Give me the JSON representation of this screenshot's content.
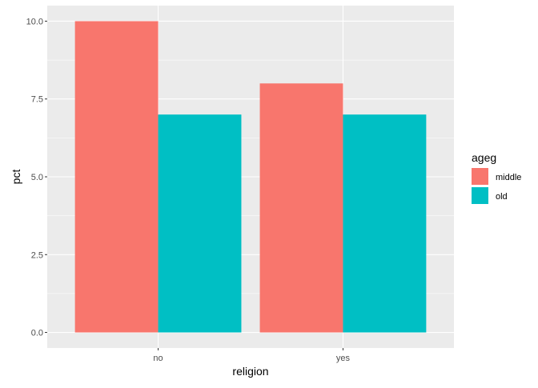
{
  "chart_data": {
    "type": "bar",
    "title": "",
    "xlabel": "religion",
    "ylabel": "pct",
    "categories": [
      "no",
      "yes"
    ],
    "series": [
      {
        "name": "middle",
        "values": [
          10,
          8
        ],
        "color": "#F8766D"
      },
      {
        "name": "old",
        "values": [
          7,
          7
        ],
        "color": "#00BFC4"
      }
    ],
    "ylim": [
      -0.5,
      10.5
    ],
    "yticks": [
      0,
      2.5,
      5,
      7.5,
      10
    ],
    "ytick_labels": [
      "0.0",
      "2.5",
      "5.0",
      "7.5",
      "10.0"
    ],
    "grid": true,
    "legend": {
      "title": "ageg",
      "position": "right"
    },
    "panel_background": "#EBEBEB",
    "grid_color": "#FFFFFF"
  }
}
